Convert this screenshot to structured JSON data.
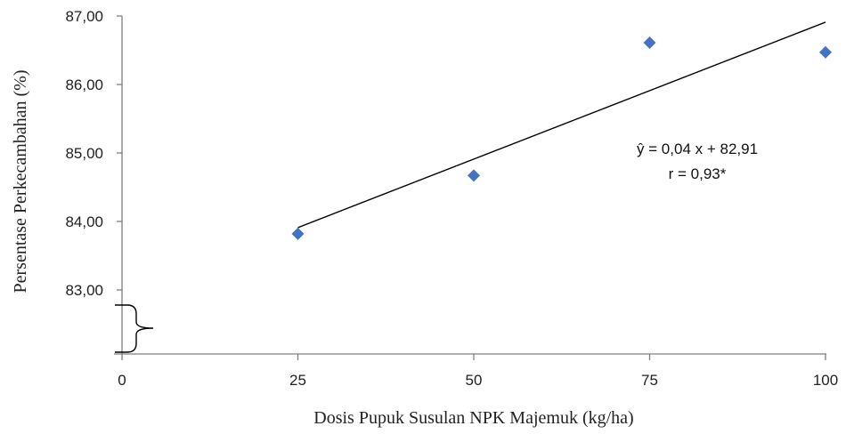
{
  "chart_data": {
    "type": "scatter",
    "xlabel": "Dosis Pupuk Susulan NPK Majemuk (kg/ha)",
    "ylabel": "Persentase Perkecambahan (%)",
    "x_ticks": [
      "0",
      "25",
      "50",
      "75",
      "100"
    ],
    "y_ticks": [
      "83,00",
      "84,00",
      "85,00",
      "86,00",
      "87,00"
    ],
    "xlim": [
      0,
      100
    ],
    "ylim": [
      82,
      87
    ],
    "axis_break": true,
    "grid": false,
    "marker_color": "#4472C4",
    "line_color": "#000000",
    "points": {
      "x": [
        25,
        50,
        75,
        100
      ],
      "y": [
        83.82,
        84.67,
        86.61,
        86.47
      ]
    },
    "trendline": {
      "slope": 0.04,
      "intercept": 82.91
    },
    "annotations": {
      "equation": "ŷ = 0,04 x + 82,91",
      "r": "r = 0,93*"
    }
  }
}
